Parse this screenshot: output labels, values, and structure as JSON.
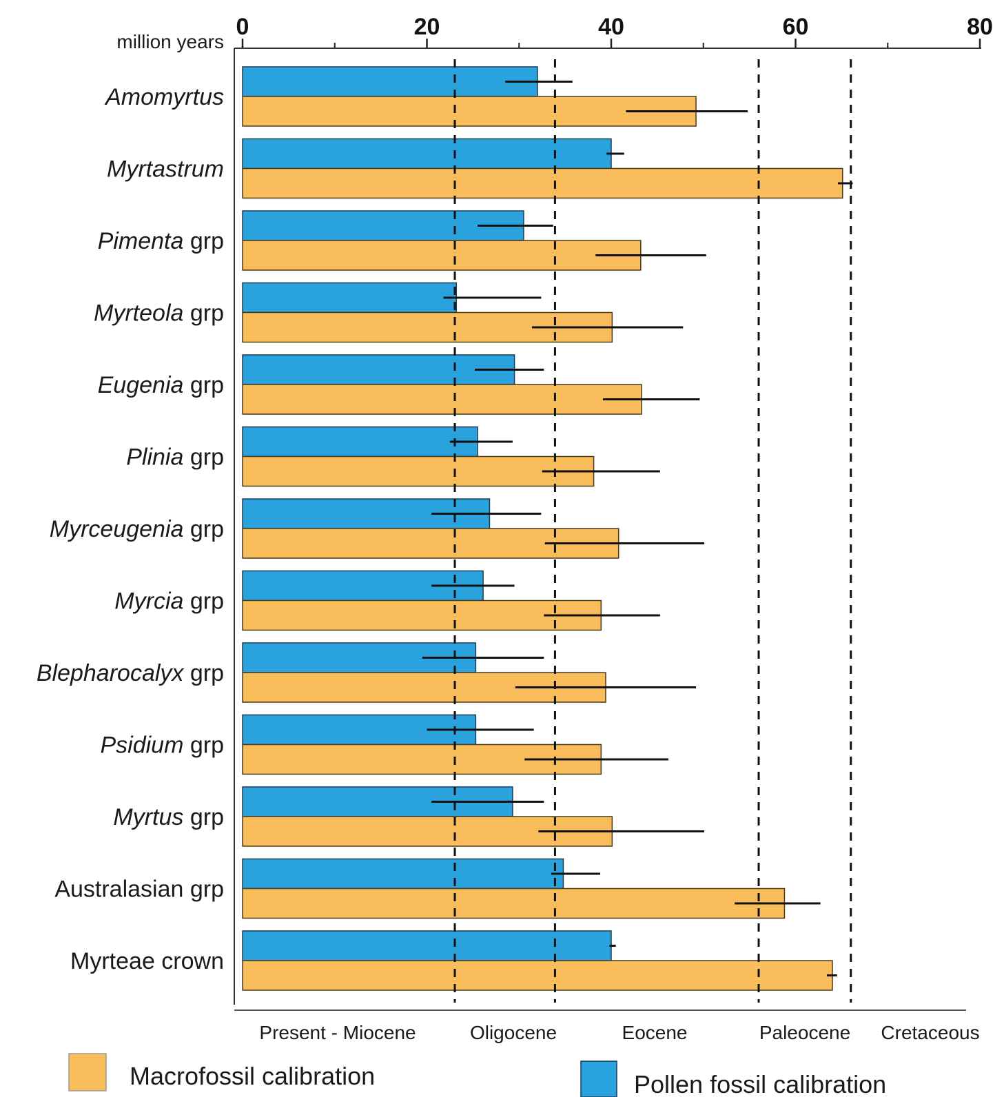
{
  "chart_data": {
    "type": "bar",
    "orientation": "horizontal",
    "x_unit_label": "million years",
    "xlim": [
      0,
      80
    ],
    "x_ticks": [
      0,
      20,
      40,
      60,
      80
    ],
    "x_minor_ticks": [
      10,
      30,
      50,
      70
    ],
    "colors": {
      "macro": "#F9BE5B",
      "pollen": "#2AA2DD"
    },
    "categories": [
      {
        "italic": "Amomyrtus",
        "rest": ""
      },
      {
        "italic": "Myrtastrum",
        "rest": ""
      },
      {
        "italic": "Pimenta",
        "rest": " grp"
      },
      {
        "italic": "Myrteola",
        "rest": " grp"
      },
      {
        "italic": "Eugenia",
        "rest": " grp"
      },
      {
        "italic": "Plinia",
        "rest": " grp"
      },
      {
        "italic": "Myrceugenia",
        "rest": " grp"
      },
      {
        "italic": "Myrcia",
        "rest": " grp"
      },
      {
        "italic": "Blepharocalyx",
        "rest": " grp"
      },
      {
        "italic": "Psidium",
        "rest": " grp"
      },
      {
        "italic": "Myrtus",
        "rest": " grp"
      },
      {
        "italic": "",
        "rest": "Australasian grp"
      },
      {
        "italic": "",
        "rest": "Myrteae crown"
      }
    ],
    "series": [
      {
        "name": "Pollen fossil calibration",
        "values": [
          32,
          40,
          30.5,
          23.2,
          29.5,
          25.5,
          26.8,
          26.1,
          25.3,
          25.3,
          29.3,
          34.8,
          40
        ],
        "err_low": [
          28.5,
          39.5,
          25.5,
          21.8,
          25.2,
          22.5,
          20.5,
          20.5,
          19.5,
          20,
          20.5,
          33.5,
          39.8
        ],
        "err_high": [
          35.8,
          41.4,
          33.7,
          32.4,
          32.7,
          29.3,
          32.4,
          29.5,
          32.7,
          31.6,
          32.7,
          38.8,
          40.5
        ]
      },
      {
        "name": "Macrofossil calibration",
        "values": [
          49.2,
          65.1,
          43.2,
          40.1,
          43.3,
          38.1,
          40.8,
          38.9,
          39.4,
          38.9,
          40.1,
          58.8,
          64
        ],
        "err_low": [
          41.6,
          64.6,
          38.3,
          31.4,
          39.1,
          32.5,
          32.8,
          32.7,
          29.6,
          30.6,
          32.1,
          53.4,
          63.4
        ],
        "err_high": [
          54.8,
          66.2,
          50.3,
          47.8,
          49.6,
          45.3,
          50.1,
          45.3,
          49.2,
          46.2,
          50.1,
          62.7,
          64.5
        ]
      }
    ],
    "reference_lines": [
      23.03,
      33.9,
      56,
      66
    ],
    "epochs": [
      "Present - Miocene",
      "Oligocene",
      "Eocene",
      "Paleocene",
      "Cretaceous"
    ],
    "legend": [
      {
        "label": "Macrofossil calibration",
        "series": "macro"
      },
      {
        "label": "Pollen fossil calibration",
        "series": "pollen"
      }
    ],
    "legend_position": "bottom",
    "grid": false
  }
}
